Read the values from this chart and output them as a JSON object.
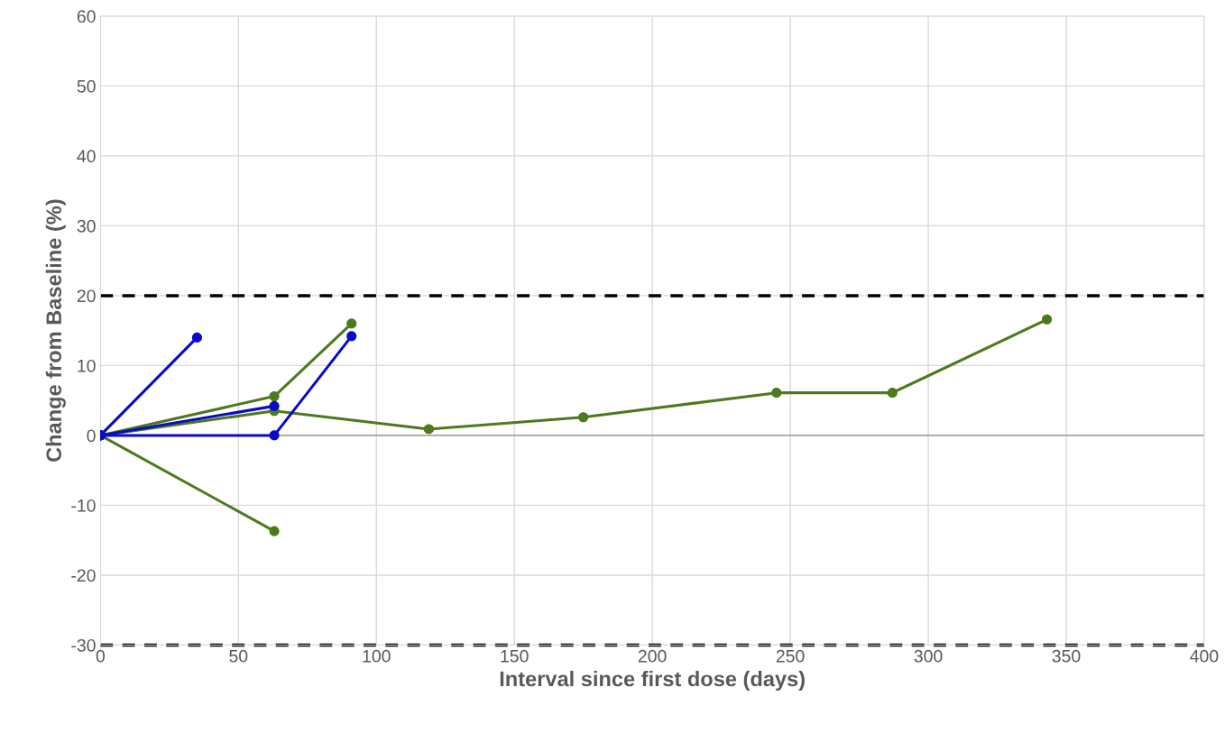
{
  "chart_data": {
    "type": "line",
    "xlabel": "Interval since first dose (days)",
    "ylabel": "Change from Baseline (%)",
    "xlim": [
      0,
      400
    ],
    "xticks": [
      0,
      50,
      100,
      150,
      200,
      250,
      300,
      350,
      400
    ],
    "ylim": [
      -30,
      60
    ],
    "yticks": [
      -30,
      -20,
      -10,
      0,
      10,
      20,
      30,
      40,
      50,
      60
    ],
    "grid": true,
    "marker": "circle",
    "line_style": "solid",
    "series": [
      {
        "color": "#4e7a1e",
        "x": [
          0,
          63,
          119,
          175,
          245,
          287,
          343
        ],
        "values": [
          0,
          3.5,
          0.9,
          2.6,
          6.1,
          6.1,
          16.6
        ]
      },
      {
        "color": "#4e7a1e",
        "x": [
          0,
          63,
          91
        ],
        "values": [
          0,
          5.6,
          16
        ]
      },
      {
        "color": "#4e7a1e",
        "x": [
          0,
          63
        ],
        "values": [
          0,
          -13.7
        ]
      },
      {
        "color": "#0a0ac8",
        "x": [
          0,
          35
        ],
        "values": [
          0,
          14
        ]
      },
      {
        "color": "#0a0ac8",
        "x": [
          0,
          63
        ],
        "values": [
          0,
          4.2
        ]
      },
      {
        "color": "#0a0ac8",
        "x": [
          0,
          63,
          91
        ],
        "values": [
          0,
          0,
          14.2
        ]
      }
    ],
    "ref_lines": [
      {
        "axis": "y",
        "value": 20,
        "color": "#000000",
        "line_style": "dashed"
      },
      {
        "axis": "y",
        "value": -30,
        "color": "#000000",
        "line_style": "dashed"
      }
    ]
  }
}
